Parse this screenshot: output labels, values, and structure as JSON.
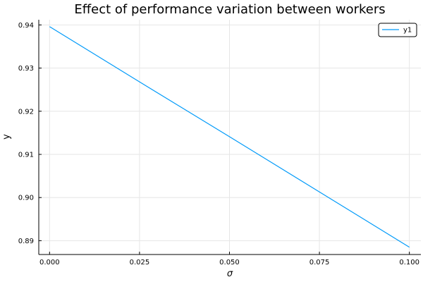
{
  "chart_data": {
    "type": "line",
    "title": "Effect of performance variation between workers",
    "xlabel": "σ",
    "ylabel": "y",
    "xlim": [
      -0.003,
      0.1032
    ],
    "ylim": [
      0.8868,
      0.9412
    ],
    "xticks": [
      0.0,
      0.025,
      0.05,
      0.075,
      0.1
    ],
    "xtick_labels": [
      "0.000",
      "0.025",
      "0.050",
      "0.075",
      "0.100"
    ],
    "yticks": [
      0.89,
      0.9,
      0.91,
      0.92,
      0.93,
      0.94
    ],
    "ytick_labels": [
      "0.89",
      "0.90",
      "0.91",
      "0.92",
      "0.93",
      "0.94"
    ],
    "grid": true,
    "legend": "top-right",
    "series": [
      {
        "name": "y1",
        "color": "#009af9",
        "x": [
          0.0,
          0.025,
          0.05,
          0.075,
          0.1
        ],
        "y": [
          0.9396,
          0.9268,
          0.9141,
          0.9013,
          0.8885
        ]
      }
    ]
  }
}
